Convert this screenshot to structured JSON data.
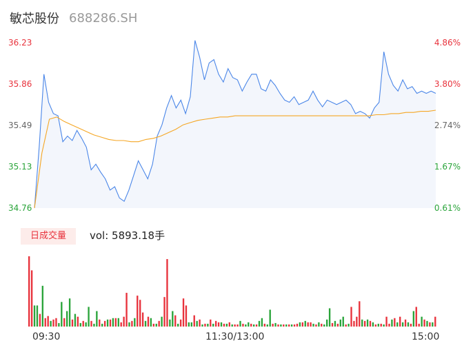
{
  "header": {
    "name": "敏芯股份",
    "code": "688286.SH"
  },
  "price_axis": {
    "ticks": [
      "36.23",
      "35.86",
      "35.49",
      "35.13",
      "34.76"
    ],
    "tick_values": [
      36.23,
      35.86,
      35.49,
      35.13,
      34.76
    ],
    "tick_colors": [
      "#e8323c",
      "#e8323c",
      "#666666",
      "#2aa43a",
      "#2aa43a"
    ]
  },
  "pct_axis": {
    "ticks": [
      "4.86%",
      "3.80%",
      "2.74%",
      "1.67%",
      "0.61%"
    ],
    "tick_colors": [
      "#e8323c",
      "#e8323c",
      "#666666",
      "#2aa43a",
      "#2aa43a"
    ]
  },
  "volume": {
    "badge": "日成交量",
    "text": "vol: 5893.18手"
  },
  "time_axis": {
    "labels": [
      "09:30",
      "11:30/13:00",
      "15:00"
    ]
  },
  "colors": {
    "price_line": "#4a86e8",
    "avg_line": "#f5a623",
    "area_fill": "#f3f6fc",
    "up": "#e8323c",
    "down": "#2aa43a"
  },
  "chart_data": [
    {
      "type": "line",
      "title": "",
      "xlabel": "",
      "ylabel": "",
      "ylim": [
        34.76,
        36.23
      ],
      "x_range": [
        "09:30",
        "15:00"
      ],
      "series": [
        {
          "name": "",
          "values": [
            34.76,
            35.3,
            35.95,
            35.7,
            35.6,
            35.58,
            35.35,
            35.4,
            35.36,
            35.45,
            35.38,
            35.3,
            35.1,
            35.15,
            35.08,
            35.02,
            34.92,
            34.95,
            34.85,
            34.82,
            34.92,
            35.05,
            35.18,
            35.1,
            35.02,
            35.15,
            35.4,
            35.5,
            35.65,
            35.76,
            35.65,
            35.72,
            35.6,
            35.75,
            36.25,
            36.1,
            35.9,
            36.05,
            36.08,
            35.95,
            35.88,
            36.0,
            35.92,
            35.9,
            35.8,
            35.88,
            35.95,
            35.95,
            35.82,
            35.8,
            35.9,
            35.85,
            35.78,
            35.72,
            35.7,
            35.75,
            35.68,
            35.7,
            35.72,
            35.8,
            35.72,
            35.66,
            35.72,
            35.7,
            35.68,
            35.7,
            35.72,
            35.68,
            35.6,
            35.62,
            35.6,
            35.56,
            35.65,
            35.7,
            36.15,
            35.95,
            35.85,
            35.8,
            35.9,
            35.82,
            35.84,
            35.78,
            35.8,
            35.78,
            35.8,
            35.78
          ],
          "color": "#4a86e8"
        },
        {
          "name": "",
          "values": [
            34.76,
            35.25,
            35.55,
            35.57,
            35.53,
            35.5,
            35.47,
            35.44,
            35.41,
            35.39,
            35.37,
            35.36,
            35.36,
            35.35,
            35.35,
            35.37,
            35.38,
            35.4,
            35.43,
            35.46,
            35.5,
            35.52,
            35.54,
            35.55,
            35.56,
            35.57,
            35.57,
            35.58,
            35.58,
            35.58,
            35.58,
            35.58,
            35.58,
            35.58,
            35.58,
            35.58,
            35.58,
            35.58,
            35.58,
            35.58,
            35.58,
            35.58,
            35.58,
            35.58,
            35.58,
            35.58,
            35.59,
            35.59,
            35.6,
            35.6,
            35.61,
            35.61,
            35.62,
            35.62,
            35.63
          ],
          "color": "#f5a623"
        }
      ]
    },
    {
      "type": "bar",
      "title": "",
      "ylabel": "",
      "ylim": [
        0,
        100
      ],
      "series": [
        {
          "name": "",
          "values": [
            100,
            80,
            30,
            30,
            18,
            58,
            12,
            15,
            8,
            10,
            12,
            5,
            35,
            12,
            22,
            40,
            10,
            18,
            14,
            5,
            8,
            6,
            28,
            8,
            4,
            22,
            10,
            4,
            8,
            10,
            10,
            12,
            12,
            12,
            6,
            14,
            48,
            6,
            8,
            12,
            44,
            38,
            20,
            8,
            14,
            12,
            4,
            4,
            8,
            14,
            42,
            96,
            10,
            22,
            16,
            4,
            10,
            40,
            30,
            6,
            6,
            16,
            8,
            10,
            3,
            4,
            4,
            10,
            4,
            8,
            6,
            6,
            4,
            4,
            6,
            3,
            3,
            3,
            8,
            4,
            3,
            6,
            4,
            3,
            3,
            8,
            12,
            4,
            3,
            24,
            4,
            5,
            3,
            3,
            3,
            3,
            3,
            3,
            3,
            4,
            6,
            6,
            8,
            6,
            6,
            4,
            3,
            6,
            4,
            3,
            10,
            26,
            5,
            8,
            4,
            10,
            14,
            3,
            4,
            28,
            8,
            14,
            36,
            10,
            8,
            10,
            8,
            6,
            3,
            4,
            4,
            3,
            14,
            4,
            10,
            12,
            6,
            14,
            6,
            10,
            6,
            4,
            22,
            28,
            4,
            14,
            10,
            8,
            6,
            6,
            14
          ],
          "signs": [
            1,
            1,
            -1,
            -1,
            1,
            -1,
            1,
            1,
            -1,
            1,
            1,
            -1,
            -1,
            1,
            -1,
            -1,
            1,
            -1,
            1,
            -1,
            1,
            -1,
            -1,
            1,
            -1,
            -1,
            1,
            -1,
            1,
            -1,
            1,
            -1,
            1,
            -1,
            1,
            1,
            1,
            -1,
            1,
            -1,
            1,
            1,
            1,
            -1,
            1,
            -1,
            1,
            -1,
            1,
            -1,
            1,
            1,
            -1,
            -1,
            1,
            -1,
            1,
            1,
            1,
            -1,
            -1,
            1,
            -1,
            1,
            -1,
            1,
            -1,
            1,
            -1,
            1,
            1,
            -1,
            1,
            -1,
            1,
            -1,
            1,
            1,
            -1,
            1,
            -1,
            -1,
            1,
            -1,
            1,
            -1,
            -1,
            1,
            -1,
            -1,
            1,
            -1,
            1,
            -1,
            1,
            -1,
            1,
            -1,
            1,
            1,
            -1,
            1,
            -1,
            1,
            1,
            -1,
            1,
            -1,
            1,
            -1,
            -1,
            -1,
            1,
            -1,
            1,
            -1,
            -1,
            1,
            -1,
            1,
            1,
            1,
            1,
            -1,
            1,
            -1,
            1,
            -1,
            1,
            -1,
            1,
            -1,
            1,
            1,
            -1,
            1,
            -1,
            1,
            -1,
            1,
            -1,
            1,
            -1,
            1,
            1,
            -1,
            1,
            -1,
            1,
            -1,
            1
          ]
        }
      ]
    }
  ]
}
